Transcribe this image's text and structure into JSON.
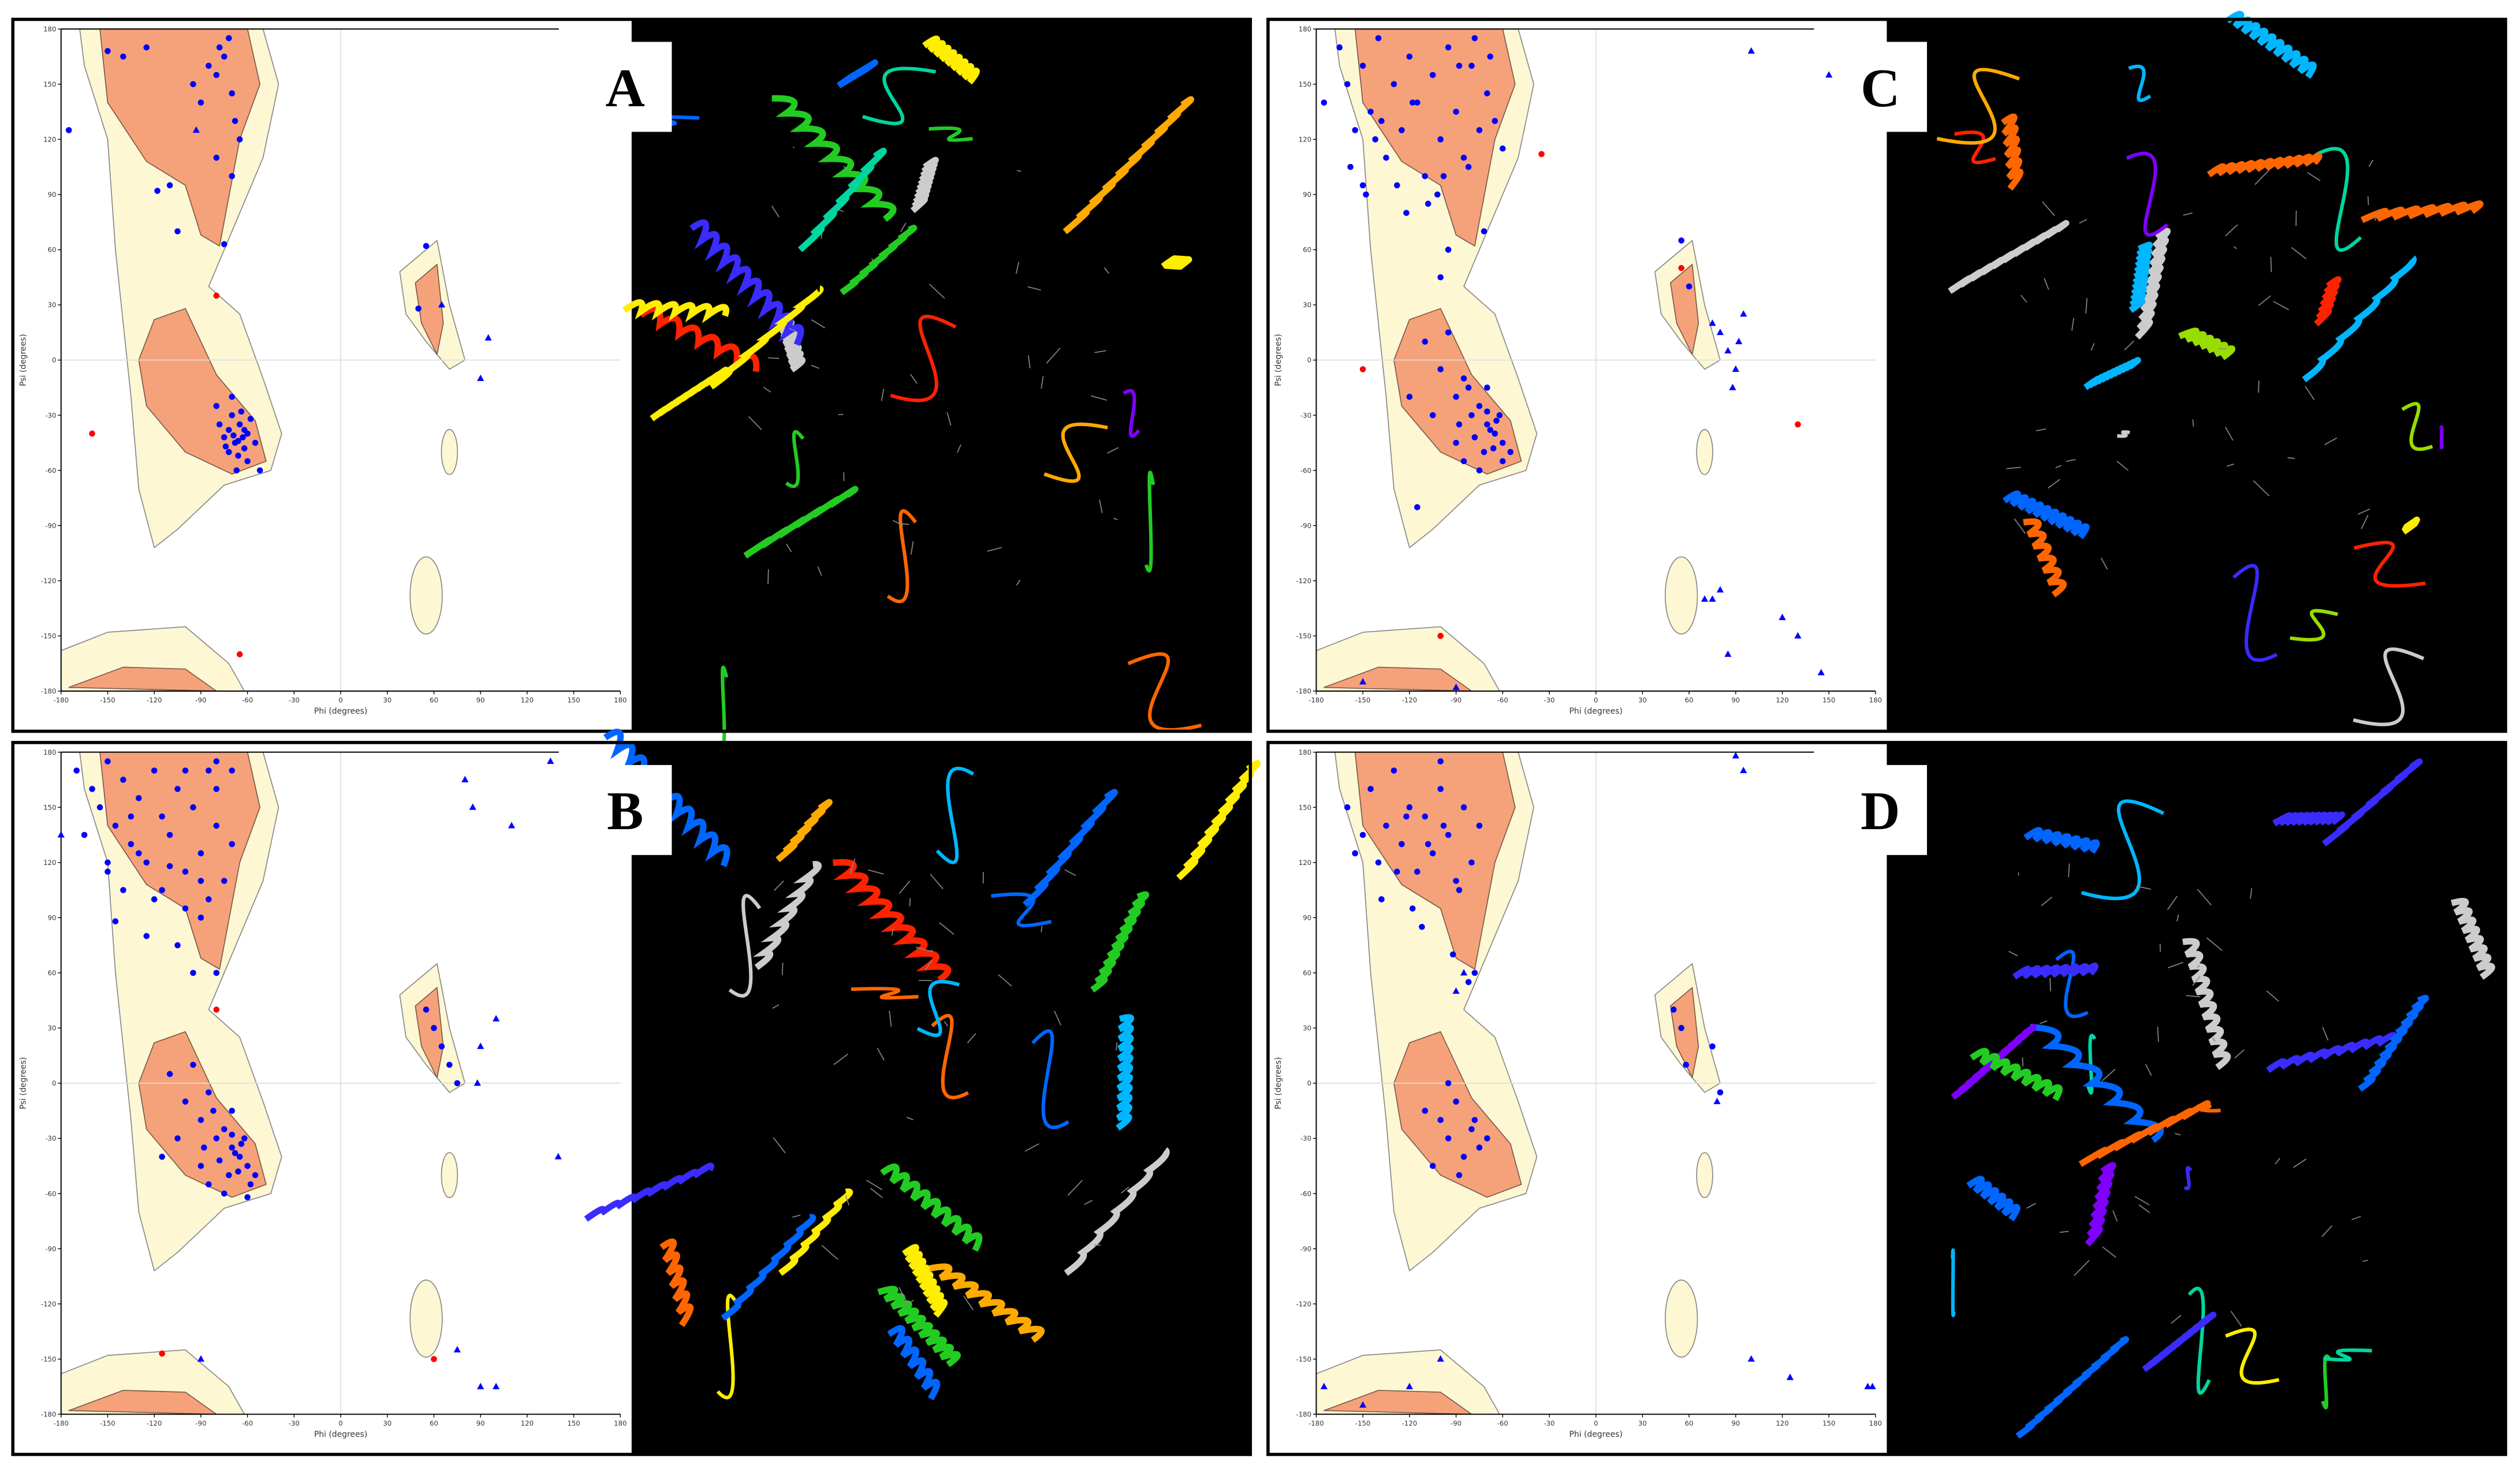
{
  "chart_data": [
    {
      "type": "scatter",
      "label": "A",
      "x_label": "Phi (degrees)",
      "y_label": "Psi (degrees)",
      "xlim": [
        -180,
        180
      ],
      "ylim": [
        -180,
        180
      ],
      "xticks": [
        -180,
        -150,
        -120,
        -90,
        -60,
        -30,
        0,
        30,
        60,
        90,
        120,
        150,
        180
      ],
      "yticks": [
        -180,
        -150,
        -120,
        -90,
        -60,
        -30,
        0,
        30,
        60,
        90,
        120,
        150,
        180
      ],
      "grid": "zero",
      "series": [
        {
          "color": "#0000ff",
          "marker": "circle",
          "x": [
            -150,
            -140,
            -125,
            -118,
            -110,
            -95,
            -85,
            -80,
            -78,
            -75,
            -72,
            -70,
            -68,
            -65,
            -80,
            -90,
            -75,
            -70,
            -175,
            -105,
            -70,
            -65,
            -60,
            -68,
            -72,
            -62,
            -58,
            -75,
            -66,
            -55,
            -70,
            -64,
            -60,
            -78,
            -72,
            -67,
            -52,
            -80,
            -63,
            -69,
            -62,
            -74,
            -66,
            50,
            55
          ],
          "y": [
            168,
            165,
            170,
            92,
            95,
            150,
            160,
            155,
            170,
            165,
            175,
            145,
            130,
            120,
            110,
            140,
            63,
            100,
            125,
            70,
            -30,
            -35,
            -40,
            -45,
            -38,
            -48,
            -32,
            -42,
            -52,
            -45,
            -20,
            -28,
            -55,
            -35,
            -50,
            -60,
            -60,
            -25,
            -42,
            -41,
            -38,
            -47,
            -44,
            28,
            62
          ]
        },
        {
          "color": "#0000ff",
          "marker": "triangle",
          "x": [
            -93,
            65,
            95,
            90
          ],
          "y": [
            125,
            30,
            12,
            -10
          ]
        },
        {
          "color": "#ff0000",
          "marker": "circle",
          "x": [
            -160,
            -80,
            -65
          ],
          "y": [
            -40,
            35,
            -160
          ]
        }
      ]
    },
    {
      "type": "scatter",
      "label": "B",
      "x_label": "Phi (degrees)",
      "y_label": "Psi (degrees)",
      "xlim": [
        -180,
        180
      ],
      "ylim": [
        -180,
        180
      ],
      "xticks": [
        -180,
        -150,
        -120,
        -90,
        -60,
        -30,
        0,
        30,
        60,
        90,
        120,
        150,
        180
      ],
      "yticks": [
        -180,
        -150,
        -120,
        -90,
        -60,
        -30,
        0,
        30,
        60,
        90,
        120,
        150,
        180
      ],
      "grid": "zero",
      "series": [
        {
          "color": "#0000ff",
          "marker": "circle",
          "x": [
            -170,
            -160,
            -155,
            -150,
            -145,
            -140,
            -135,
            -130,
            -125,
            -120,
            -115,
            -110,
            -105,
            -100,
            -95,
            -90,
            -85,
            -80,
            -75,
            -70,
            -165,
            -150,
            -140,
            -130,
            -120,
            -110,
            -100,
            -90,
            -80,
            -145,
            -125,
            -105,
            -95,
            -85,
            -135,
            -115,
            -100,
            -90,
            -80,
            -150,
            -80,
            -70,
            -110,
            -100,
            -95,
            -90,
            -85,
            -80,
            -75,
            -70,
            -65,
            -60,
            -72,
            -68,
            -62,
            -58,
            -78,
            -82,
            -88,
            -66,
            -70,
            -64,
            -105,
            -115,
            -60,
            -75,
            -90,
            -55,
            -85,
            -70,
            55,
            60,
            65,
            70,
            75
          ],
          "y": [
            170,
            160,
            150,
            175,
            140,
            165,
            130,
            155,
            120,
            170,
            145,
            135,
            160,
            115,
            150,
            125,
            170,
            140,
            110,
            130,
            135,
            115,
            105,
            125,
            100,
            118,
            95,
            110,
            160,
            88,
            80,
            75,
            60,
            100,
            145,
            105,
            170,
            90,
            175,
            120,
            60,
            170,
            5,
            -10,
            10,
            -20,
            -5,
            -30,
            -25,
            -35,
            -40,
            -45,
            -50,
            -38,
            -30,
            -55,
            -42,
            -15,
            -35,
            -48,
            -28,
            -33,
            -30,
            -40,
            -62,
            -60,
            -45,
            -50,
            -55,
            -15,
            40,
            30,
            20,
            10,
            0
          ]
        },
        {
          "color": "#0000ff",
          "marker": "triangle",
          "x": [
            80,
            85,
            110,
            135,
            90,
            88,
            100,
            140,
            90,
            100,
            75,
            -90,
            -180
          ],
          "y": [
            165,
            150,
            140,
            175,
            20,
            0,
            35,
            -40,
            -165,
            -165,
            -145,
            -150,
            135
          ]
        },
        {
          "color": "#ff0000",
          "marker": "circle",
          "x": [
            -80,
            -115,
            60
          ],
          "y": [
            40,
            -147,
            -150
          ]
        }
      ]
    },
    {
      "type": "scatter",
      "label": "C",
      "x_label": "Phi (degrees)",
      "y_label": "Psi (degrees)",
      "xlim": [
        -180,
        180
      ],
      "ylim": [
        -180,
        180
      ],
      "xticks": [
        -180,
        -150,
        -120,
        -90,
        -60,
        -30,
        0,
        30,
        60,
        90,
        120,
        150,
        180
      ],
      "yticks": [
        -180,
        -150,
        -120,
        -90,
        -60,
        -30,
        0,
        30,
        60,
        90,
        120,
        150,
        180
      ],
      "grid": "zero",
      "series": [
        {
          "color": "#0000ff",
          "marker": "circle",
          "x": [
            -175,
            -165,
            -160,
            -155,
            -150,
            -145,
            -140,
            -135,
            -130,
            -125,
            -120,
            -115,
            -110,
            -105,
            -100,
            -95,
            -90,
            -85,
            -80,
            -75,
            -70,
            -65,
            -60,
            -158,
            -148,
            -138,
            -128,
            -118,
            -108,
            -98,
            -88,
            -78,
            -68,
            -142,
            -122,
            -102,
            -82,
            -72,
            -150,
            -95,
            -110,
            -100,
            -95,
            -90,
            -85,
            -80,
            -75,
            -70,
            -65,
            -60,
            -72,
            -68,
            -62,
            -78,
            -82,
            -88,
            -66,
            -70,
            -64,
            -105,
            -120,
            -60,
            -75,
            -90,
            -55,
            -85,
            -70,
            -115,
            55,
            60,
            -100
          ],
          "y": [
            140,
            170,
            150,
            125,
            160,
            135,
            175,
            110,
            150,
            125,
            165,
            140,
            100,
            155,
            120,
            170,
            135,
            110,
            160,
            125,
            145,
            130,
            115,
            105,
            90,
            130,
            95,
            140,
            85,
            100,
            160,
            175,
            165,
            120,
            80,
            90,
            105,
            70,
            95,
            60,
            10,
            -5,
            15,
            -20,
            -10,
            -30,
            -25,
            -35,
            -40,
            -45,
            -50,
            -38,
            -30,
            -42,
            -15,
            -35,
            -48,
            -28,
            -33,
            -30,
            -20,
            -55,
            -60,
            -45,
            -50,
            -55,
            -15,
            -80,
            65,
            40,
            45
          ]
        },
        {
          "color": "#0000ff",
          "marker": "triangle",
          "x": [
            80,
            85,
            90,
            75,
            95,
            88,
            100,
            150,
            80,
            85,
            120,
            130,
            145,
            70,
            -90,
            -150,
            75,
            92
          ],
          "y": [
            15,
            5,
            -5,
            20,
            25,
            -15,
            168,
            155,
            -125,
            -160,
            -140,
            -150,
            -170,
            -130,
            -178,
            -175,
            -130,
            10
          ]
        },
        {
          "color": "#ff0000",
          "marker": "circle",
          "x": [
            -35,
            55,
            -150,
            130,
            -100
          ],
          "y": [
            112,
            50,
            -5,
            -35,
            -150
          ]
        }
      ]
    },
    {
      "type": "scatter",
      "label": "D",
      "x_label": "Phi (degrees)",
      "y_label": "Psi (degrees)",
      "xlim": [
        -180,
        180
      ],
      "ylim": [
        -180,
        180
      ],
      "xticks": [
        -180,
        -150,
        -120,
        -90,
        -60,
        -30,
        0,
        30,
        60,
        90,
        120,
        150,
        180
      ],
      "yticks": [
        -180,
        -150,
        -120,
        -90,
        -60,
        -30,
        0,
        30,
        60,
        90,
        120,
        150,
        180
      ],
      "grid": "zero",
      "series": [
        {
          "color": "#0000ff",
          "marker": "circle",
          "x": [
            -160,
            -150,
            -145,
            -140,
            -135,
            -130,
            -125,
            -120,
            -115,
            -110,
            -105,
            -100,
            -95,
            -90,
            -85,
            -80,
            -75,
            -155,
            -138,
            -128,
            -118,
            -108,
            -98,
            -88,
            -78,
            -112,
            -92,
            -82,
            -122,
            -100,
            -110,
            -100,
            -95,
            -90,
            -85,
            -80,
            -75,
            -70,
            -105,
            -88,
            -78,
            -95,
            50,
            55,
            58,
            75,
            80
          ],
          "y": [
            150,
            135,
            160,
            120,
            140,
            170,
            130,
            150,
            115,
            145,
            125,
            160,
            135,
            110,
            150,
            120,
            140,
            125,
            100,
            115,
            95,
            130,
            140,
            105,
            60,
            85,
            70,
            55,
            145,
            175,
            -15,
            -20,
            -30,
            -10,
            -40,
            -25,
            -35,
            -30,
            -45,
            -50,
            -20,
            0,
            40,
            30,
            10,
            20,
            -5
          ]
        },
        {
          "color": "#0000ff",
          "marker": "triangle",
          "x": [
            90,
            95,
            -85,
            -90,
            100,
            125,
            175,
            178,
            -175,
            -150,
            -120,
            78,
            -100
          ],
          "y": [
            178,
            170,
            60,
            50,
            -150,
            -160,
            -165,
            -165,
            -165,
            -175,
            -165,
            -10,
            -150
          ]
        }
      ]
    }
  ]
}
